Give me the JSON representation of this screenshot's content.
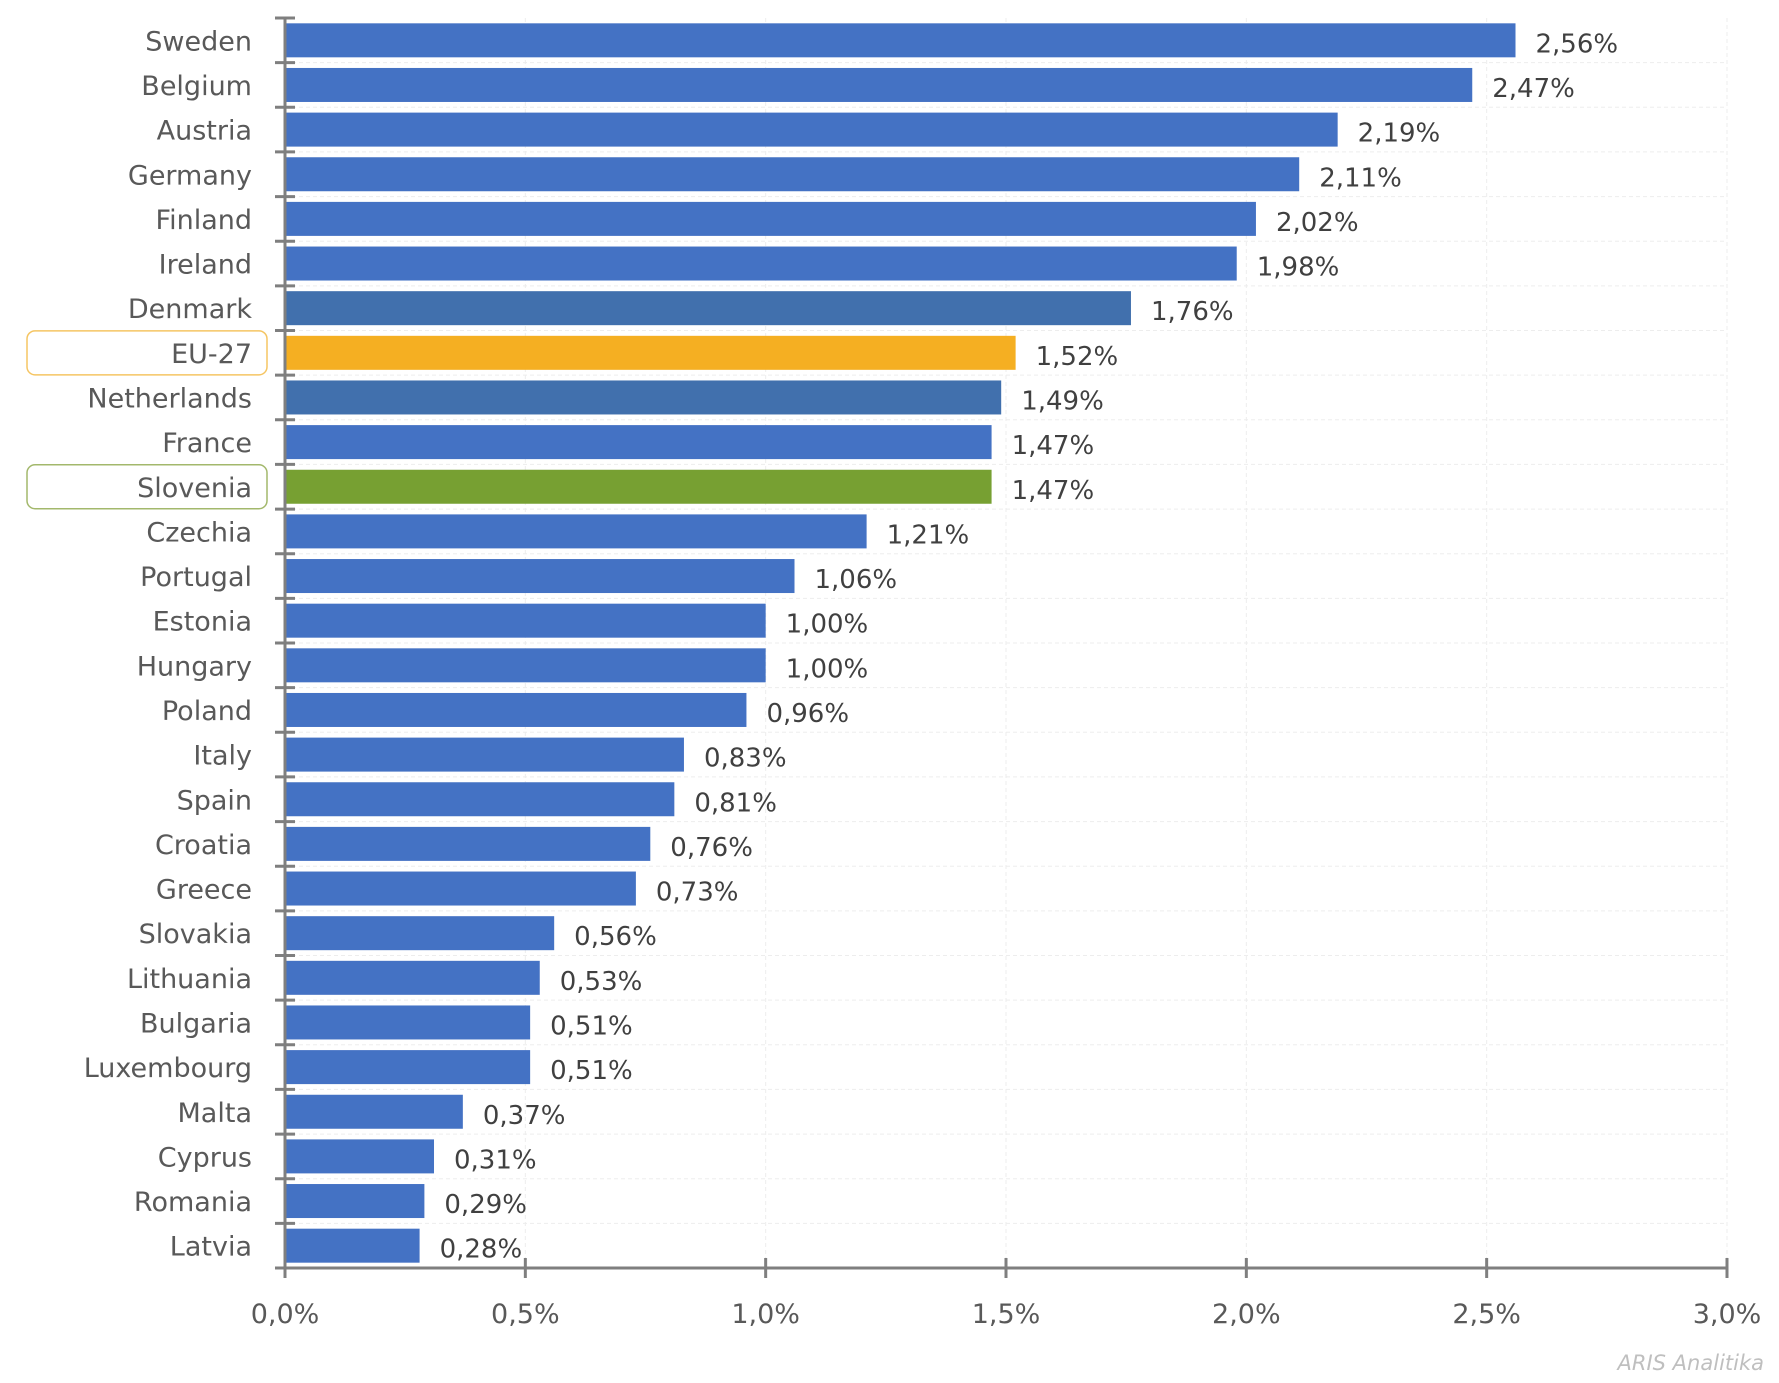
{
  "chart_data": {
    "type": "bar",
    "orientation": "horizontal",
    "categories": [
      "Sweden",
      "Belgium",
      "Austria",
      "Germany",
      "Finland",
      "Ireland",
      "Denmark",
      "EU-27",
      "Netherlands",
      "France",
      "Slovenia",
      "Czechia",
      "Portugal",
      "Estonia",
      "Hungary",
      "Poland",
      "Italy",
      "Spain",
      "Croatia",
      "Greece",
      "Slovakia",
      "Lithuania",
      "Bulgaria",
      "Luxembourg",
      "Malta",
      "Cyprus",
      "Romania",
      "Latvia"
    ],
    "values": [
      2.56,
      2.47,
      2.19,
      2.11,
      2.02,
      1.98,
      1.76,
      1.52,
      1.49,
      1.47,
      1.47,
      1.21,
      1.06,
      1.0,
      1.0,
      0.96,
      0.83,
      0.81,
      0.76,
      0.73,
      0.56,
      0.53,
      0.51,
      0.51,
      0.37,
      0.31,
      0.29,
      0.28
    ],
    "data_labels": [
      "2,56%",
      "2,47%",
      "2,19%",
      "2,11%",
      "2,02%",
      "1,98%",
      "1,76%",
      "1,52%",
      "1,49%",
      "1,47%",
      "1,47%",
      "1,21%",
      "1,06%",
      "1,00%",
      "1,00%",
      "0,96%",
      "0,83%",
      "0,81%",
      "0,76%",
      "0,73%",
      "0,56%",
      "0,53%",
      "0,51%",
      "0,51%",
      "0,37%",
      "0,31%",
      "0,29%",
      "0,28%"
    ],
    "xlim": [
      0,
      3.0
    ],
    "xticks": [
      0,
      0.5,
      1.0,
      1.5,
      2.0,
      2.5,
      3.0
    ],
    "xtick_labels": [
      "0,0%",
      "0,5%",
      "1,0%",
      "1,5%",
      "2,0%",
      "2,5%",
      "3,0%"
    ],
    "grid": true,
    "colors": {
      "default": "#4472C4",
      "Denmark": "#4170AD",
      "Netherlands": "#4170AD",
      "EU-27": "#F5AF22",
      "Slovenia": "#77A032"
    },
    "highlighted_labels": {
      "EU-27": "#F5C563",
      "Slovenia": "#A3B86C"
    },
    "source": "ARIS Analitika"
  }
}
